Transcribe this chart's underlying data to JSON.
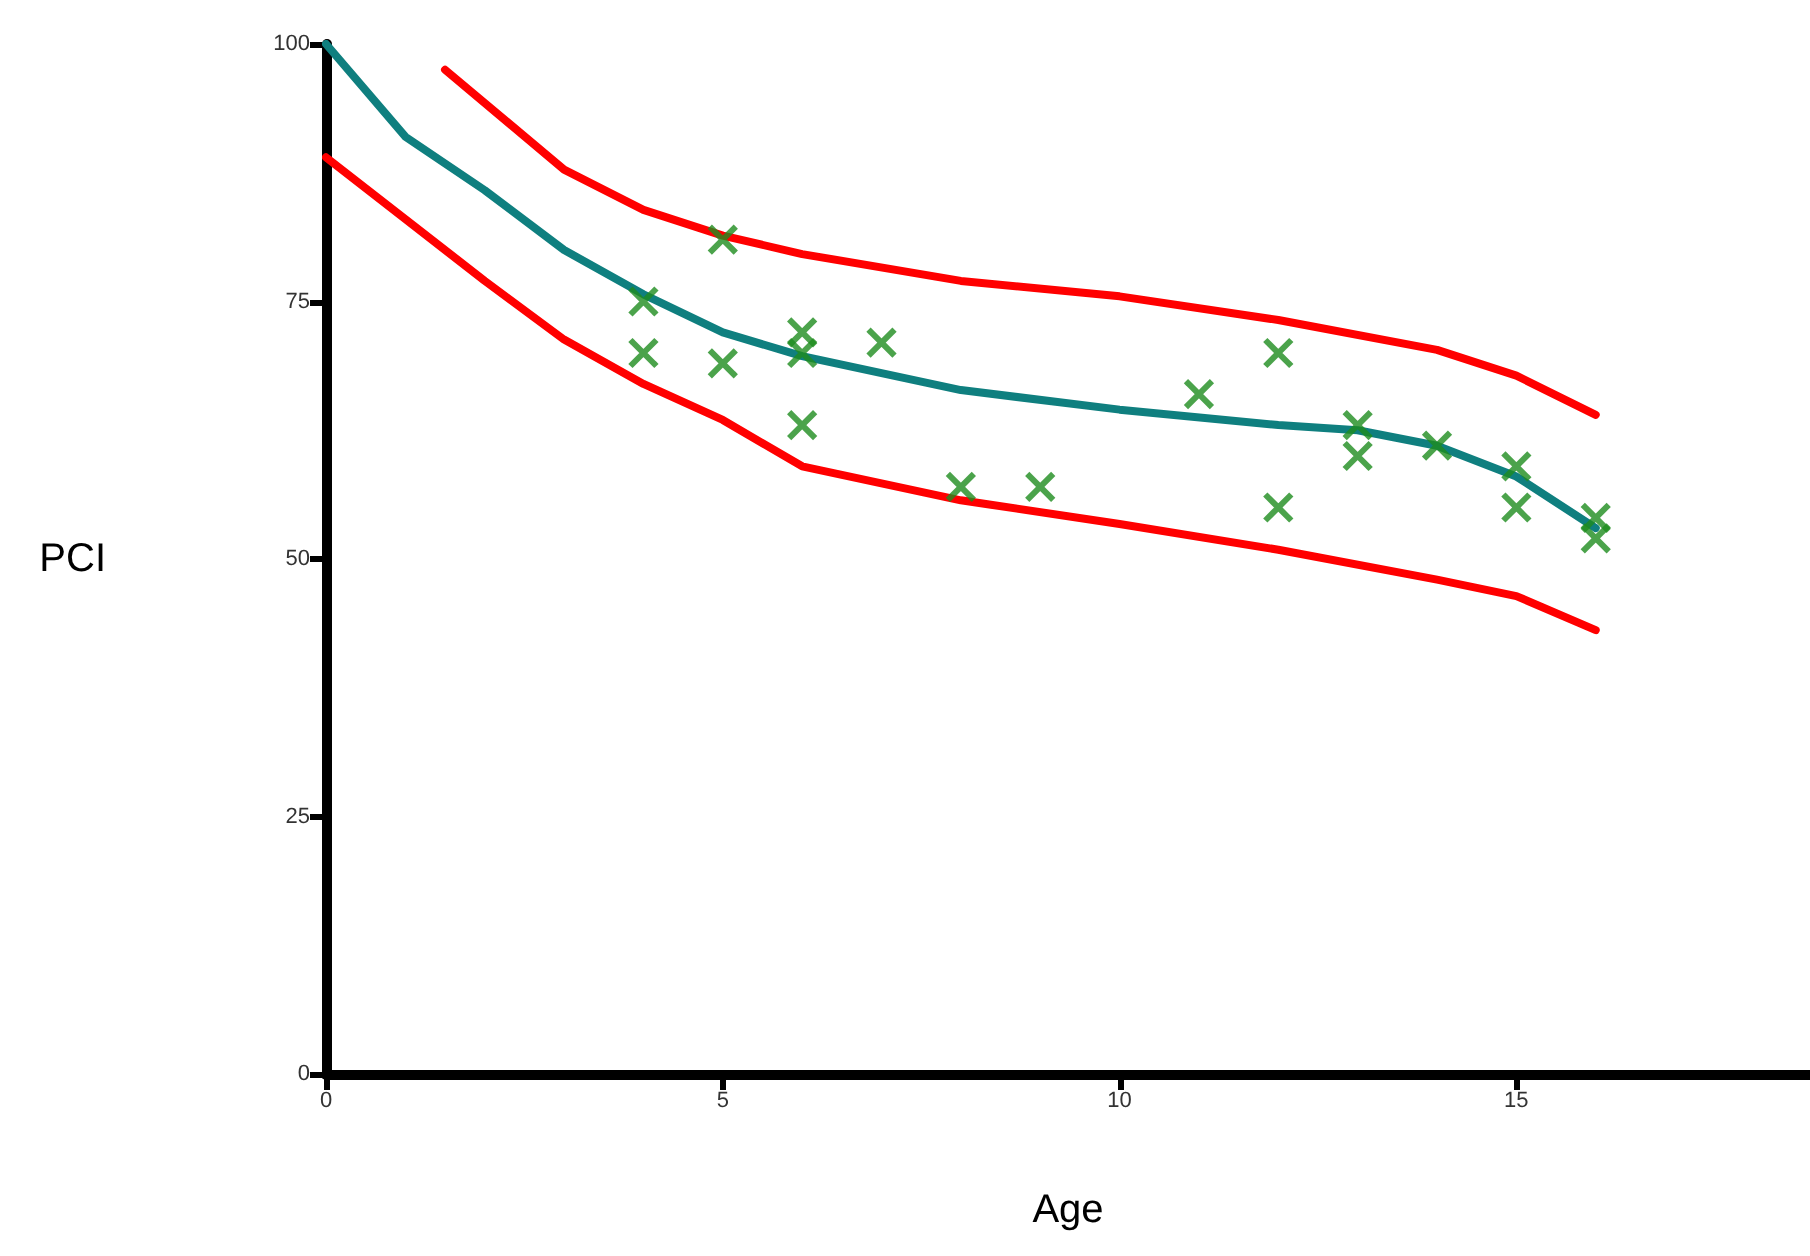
{
  "chart_data": {
    "type": "scatter",
    "xlabel": "Age",
    "ylabel": "PCI",
    "xlim": [
      0,
      18.7
    ],
    "xticks": [
      0,
      5,
      10,
      15
    ],
    "ylim": [
      0,
      100
    ],
    "yticks": [
      0,
      25,
      50,
      75,
      100
    ],
    "grid": false,
    "marker": "cross",
    "series": [
      {
        "type": "line",
        "color": "#ff0000",
        "marker": "none",
        "x": [
          1.5,
          3,
          4,
          5,
          6,
          8,
          10,
          12,
          14,
          15,
          16
        ],
        "values": [
          97.5,
          87.8,
          83.9,
          81.4,
          79.6,
          77,
          75.5,
          73.2,
          70.3,
          67.8,
          64
        ]
      },
      {
        "type": "line",
        "color": "#ff0000",
        "marker": "none",
        "x": [
          0,
          1,
          2,
          3,
          4,
          5,
          6,
          8,
          10,
          12,
          14,
          15,
          16
        ],
        "values": [
          89,
          83,
          77,
          71.3,
          67,
          63.5,
          59,
          55.7,
          53.4,
          50.9,
          48,
          46.4,
          43.1
        ]
      },
      {
        "type": "line",
        "color": "#0f7f7f",
        "marker": "none",
        "x": [
          0,
          1,
          2,
          3,
          4,
          5,
          6,
          8,
          10,
          12,
          13,
          14,
          15,
          16
        ],
        "values": [
          100,
          91,
          85.8,
          80,
          75.7,
          72,
          69.7,
          66.4,
          64.5,
          63,
          62.5,
          61,
          58,
          53
        ]
      },
      {
        "color": "#1e8c1e",
        "x": [
          4,
          4,
          5,
          5,
          6,
          6,
          6,
          7,
          8,
          9,
          11,
          12,
          12,
          13,
          13,
          14,
          15,
          15,
          16,
          16
        ],
        "values": [
          75,
          70,
          69,
          81,
          72,
          70,
          63,
          71,
          57,
          57,
          66,
          70,
          55,
          63,
          60,
          61,
          59,
          55,
          54,
          52
        ]
      }
    ]
  }
}
